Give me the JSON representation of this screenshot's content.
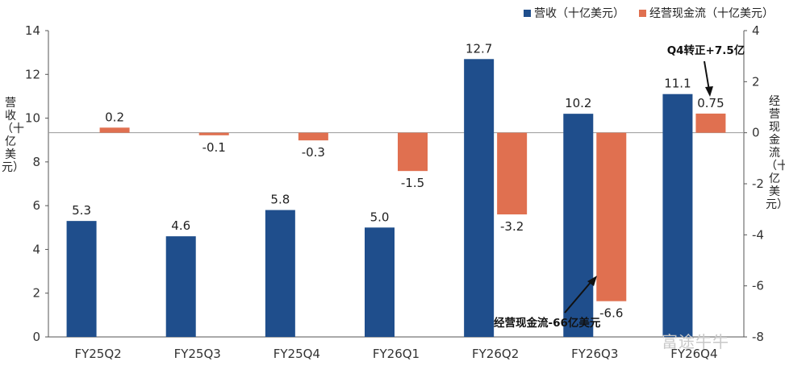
{
  "legend": {
    "revenue": "营收（十亿美元）",
    "ocf": "经营现金流（十亿美元）"
  },
  "axes": {
    "left_label": "营收（十亿美元）",
    "right_label": "经营现金流（十亿美元）"
  },
  "annotations": {
    "q4_turn": "Q4转正+7.5亿",
    "q3_low": "经营现金流-66亿美元"
  },
  "watermark": "富途牛牛",
  "colors": {
    "revenue": "#1f4e8c",
    "ocf": "#e07050"
  },
  "chart_data": {
    "type": "bar",
    "categories": [
      "FY25Q2",
      "FY25Q3",
      "FY25Q4",
      "FY26Q1",
      "FY26Q2",
      "FY26Q3",
      "FY26Q4"
    ],
    "series": [
      {
        "name": "营收（十亿美元）",
        "axis": "left",
        "values": [
          5.3,
          4.6,
          5.8,
          5.0,
          12.7,
          10.2,
          11.1
        ],
        "labels": [
          "5.3",
          "4.6",
          "5.8",
          "5.0",
          "12.7",
          "10.2",
          "11.1"
        ]
      },
      {
        "name": "经营现金流（十亿美元）",
        "axis": "right",
        "values": [
          0.2,
          -0.1,
          -0.3,
          -1.5,
          -3.2,
          -6.6,
          0.75
        ],
        "labels": [
          "0.2",
          "-0.1",
          "-0.3",
          "-1.5",
          "-3.2",
          "-6.6",
          "0.75"
        ]
      }
    ],
    "ylabel": "营收（十亿美元）",
    "y2label": "经营现金流（十亿美元）",
    "ylim": [
      0,
      14
    ],
    "y2lim": [
      -8,
      4
    ],
    "yticks": [
      0,
      2,
      4,
      6,
      8,
      10,
      12,
      14
    ],
    "y2ticks": [
      -8,
      -6,
      -4,
      -2,
      0,
      2,
      4
    ],
    "grid": false,
    "legend_position": "top-right"
  }
}
